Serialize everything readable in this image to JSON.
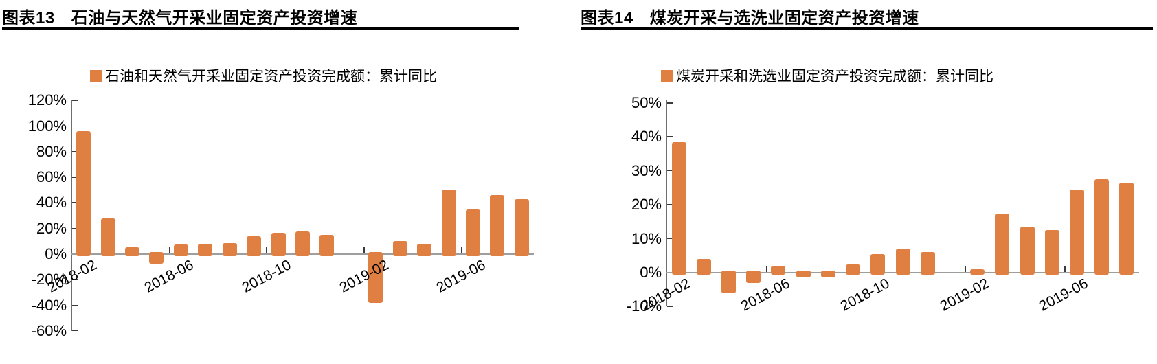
{
  "page": {
    "background": "#ffffff"
  },
  "colors": {
    "bar_orange": "#E07F42",
    "x_axis_line": "#9e9e9e",
    "y_axis_line": "#6e6e6e",
    "tick_mark": "#3a3a3a",
    "title_rule": "#000000",
    "text": "#000000"
  },
  "chart_data": [
    {
      "type": "bar",
      "figure_label": "图表13",
      "title": "石油与天然气开采业固定资产投资增速",
      "legend": "石油和天然气开采业固定资产投资完成额：累计同比",
      "categories": [
        "2018-02",
        "2018-03",
        "2018-04",
        "2018-05",
        "2018-06",
        "2018-07",
        "2018-08",
        "2018-09",
        "2018-10",
        "2018-11",
        "2018-12",
        "2019-01",
        "2019-02",
        "2019-03",
        "2019-04",
        "2019-05",
        "2019-06",
        "2019-07",
        "2019-08"
      ],
      "values": [
        96,
        28,
        5.5,
        -7.5,
        7.5,
        8,
        8.5,
        14,
        16.5,
        17.5,
        15,
        null,
        -38,
        10,
        8,
        50.5,
        35,
        46,
        43
      ],
      "x_tick_labels": [
        "2018-02",
        "2018-06",
        "2018-10",
        "2019-02",
        "2019-06"
      ],
      "x_tick_category_indexes": [
        0,
        4,
        8,
        12,
        16
      ],
      "x_boundary_tick_indexes": [
        4,
        8,
        12,
        16
      ],
      "ylim": [
        -60,
        120
      ],
      "ytick_step": 20,
      "ytick_format": "percent",
      "grid": "off",
      "legend_position": "top-center",
      "bar_color": "#E07F42"
    },
    {
      "type": "bar",
      "figure_label": "图表14",
      "title": "煤炭开采与选洗业固定资产投资增速",
      "legend": "煤炭开采和洗选业固定资产投资完成额：累计同比",
      "categories": [
        "2018-02",
        "2018-03",
        "2018-04",
        "2018-05",
        "2018-06",
        "2018-07",
        "2018-08",
        "2018-09",
        "2018-10",
        "2018-11",
        "2018-12",
        "2019-01",
        "2019-02",
        "2019-03",
        "2019-04",
        "2019-05",
        "2019-06",
        "2019-07",
        "2019-08"
      ],
      "values": [
        38.5,
        4,
        -6,
        -3,
        2,
        -1.5,
        -1.5,
        2.5,
        5.5,
        7,
        6,
        null,
        1,
        17.5,
        13.5,
        12.5,
        24.5,
        27.5,
        26.5
      ],
      "x_tick_labels": [
        "2018-02",
        "2018-06",
        "2018-10",
        "2019-02",
        "2019-06"
      ],
      "x_tick_category_indexes": [
        0,
        4,
        8,
        12,
        16
      ],
      "x_boundary_tick_indexes": [
        4,
        8,
        12,
        16
      ],
      "ylim": [
        -10,
        50
      ],
      "ytick_step": 10,
      "ytick_format": "percent",
      "grid": "off",
      "legend_position": "top-center",
      "bar_color": "#E07F42"
    }
  ]
}
